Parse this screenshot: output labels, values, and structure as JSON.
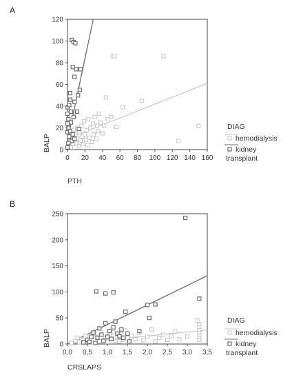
{
  "colors": {
    "hemodialysis": "#c4c4c4",
    "kidney_transplant": "#6b6b6b",
    "axis": "#444444"
  },
  "chart_data": [
    {
      "panel": "A",
      "type": "scatter",
      "xlabel": "PTH",
      "ylabel": "BALP",
      "xlim": [
        0,
        160
      ],
      "ylim": [
        0,
        120
      ],
      "xticks": [
        "0",
        "20",
        "40",
        "60",
        "80",
        "100",
        "120",
        "140",
        "160"
      ],
      "yticks": [
        "0",
        "20",
        "40",
        "60",
        "80",
        "100",
        "120"
      ],
      "legend": {
        "title": "DIAG",
        "entries": [
          "hemodialysis",
          "kidney transplant"
        ],
        "placement": "right"
      },
      "series": [
        {
          "name": "hemodialysis",
          "key": "hemodialysis",
          "points": [
            [
              2,
              3
            ],
            [
              3,
              8
            ],
            [
              4,
              2
            ],
            [
              5,
              12
            ],
            [
              6,
              5
            ],
            [
              7,
              18
            ],
            [
              8,
              9
            ],
            [
              9,
              14
            ],
            [
              10,
              6
            ],
            [
              11,
              20
            ],
            [
              12,
              10
            ],
            [
              13,
              3
            ],
            [
              14,
              16
            ],
            [
              15,
              8
            ],
            [
              16,
              22
            ],
            [
              17,
              12
            ],
            [
              18,
              5
            ],
            [
              19,
              26
            ],
            [
              20,
              14
            ],
            [
              21,
              9
            ],
            [
              22,
              18
            ],
            [
              23,
              4
            ],
            [
              24,
              28
            ],
            [
              25,
              11
            ],
            [
              26,
              20
            ],
            [
              28,
              7
            ],
            [
              29,
              24
            ],
            [
              30,
              14
            ],
            [
              31,
              30
            ],
            [
              33,
              10
            ],
            [
              34,
              22
            ],
            [
              35,
              17
            ],
            [
              36,
              33
            ],
            [
              38,
              25
            ],
            [
              40,
              15
            ],
            [
              42,
              22
            ],
            [
              44,
              48
            ],
            [
              46,
              28
            ],
            [
              50,
              30
            ],
            [
              52,
              86
            ],
            [
              54,
              86
            ],
            [
              56,
              21
            ],
            [
              63,
              39
            ],
            [
              85,
              45
            ],
            [
              110,
              86
            ],
            [
              127,
              8
            ],
            [
              150,
              22
            ]
          ]
        },
        {
          "name": "kidney transplant",
          "key": "kidney_transplant",
          "points": [
            [
              0,
              2
            ],
            [
              0,
              16
            ],
            [
              0,
              24
            ],
            [
              0,
              33
            ],
            [
              0,
              39
            ],
            [
              1,
              6
            ],
            [
              1,
              20
            ],
            [
              1,
              28
            ],
            [
              2,
              12
            ],
            [
              2,
              41
            ],
            [
              3,
              17
            ],
            [
              3,
              46
            ],
            [
              3,
              52
            ],
            [
              4,
              25
            ],
            [
              4,
              35
            ],
            [
              5,
              8
            ],
            [
              5,
              101
            ],
            [
              6,
              14
            ],
            [
              6,
              76
            ],
            [
              7,
              30
            ],
            [
              7,
              99
            ],
            [
              8,
              10
            ],
            [
              8,
              44
            ],
            [
              8,
              67
            ],
            [
              9,
              98
            ],
            [
              10,
              74
            ],
            [
              11,
              35
            ],
            [
              12,
              50
            ],
            [
              13,
              19
            ],
            [
              14,
              55
            ],
            [
              15,
              74
            ]
          ]
        }
      ],
      "fit_lines": [
        {
          "key": "hemodialysis",
          "x": [
            0,
            160
          ],
          "y": [
            10,
            61
          ]
        },
        {
          "key": "kidney_transplant",
          "x": [
            0,
            29.5
          ],
          "y": [
            8,
            120
          ]
        }
      ]
    },
    {
      "panel": "B",
      "type": "scatter",
      "xlabel": "CRSLAPS",
      "ylabel": "BALP",
      "xlim": [
        0,
        3.5
      ],
      "ylim": [
        0,
        250
      ],
      "xticks": [
        "0,0",
        "0,5",
        "1,0",
        "1,5",
        "2,0",
        "2,5",
        "3,0",
        "3,5"
      ],
      "yticks": [
        "0",
        "50",
        "100",
        "150",
        "200",
        "250"
      ],
      "legend": {
        "title": "DIAG",
        "entries": [
          "hemodialysis",
          "kidney transplant"
        ],
        "placement": "right"
      },
      "series": [
        {
          "name": "hemodialysis",
          "key": "hemodialysis",
          "points": [
            [
              0.1,
              2
            ],
            [
              0.2,
              6
            ],
            [
              0.25,
              12
            ],
            [
              0.3,
              3
            ],
            [
              0.35,
              9
            ],
            [
              0.4,
              4
            ],
            [
              0.45,
              15
            ],
            [
              0.5,
              6
            ],
            [
              0.55,
              10
            ],
            [
              0.6,
              3
            ],
            [
              0.65,
              20
            ],
            [
              0.7,
              8
            ],
            [
              0.75,
              14
            ],
            [
              0.8,
              5
            ],
            [
              0.85,
              18
            ],
            [
              0.9,
              7
            ],
            [
              0.95,
              12
            ],
            [
              1.0,
              4
            ],
            [
              1.05,
              16
            ],
            [
              1.1,
              9
            ],
            [
              1.15,
              22
            ],
            [
              1.2,
              6
            ],
            [
              1.25,
              13
            ],
            [
              1.3,
              5
            ],
            [
              1.35,
              19
            ],
            [
              1.4,
              8
            ],
            [
              1.45,
              26
            ],
            [
              1.5,
              11
            ],
            [
              1.55,
              4
            ],
            [
              1.6,
              16
            ],
            [
              1.7,
              9
            ],
            [
              1.8,
              21
            ],
            [
              1.9,
              7
            ],
            [
              2.0,
              14
            ],
            [
              2.1,
              28
            ],
            [
              2.2,
              5
            ],
            [
              2.3,
              12
            ],
            [
              2.4,
              18
            ],
            [
              2.5,
              8
            ],
            [
              2.6,
              15
            ],
            [
              2.7,
              24
            ],
            [
              2.8,
              9
            ],
            [
              3.0,
              14
            ],
            [
              3.3,
              8
            ],
            [
              3.3,
              13
            ],
            [
              3.3,
              18
            ],
            [
              3.3,
              23
            ],
            [
              3.3,
              28
            ],
            [
              3.3,
              33
            ],
            [
              3.3,
              38
            ],
            [
              3.25,
              45
            ]
          ]
        },
        {
          "name": "kidney transplant",
          "key": "kidney_transplant",
          "points": [
            [
              0.4,
              3
            ],
            [
              0.5,
              8
            ],
            [
              0.55,
              4
            ],
            [
              0.6,
              14
            ],
            [
              0.65,
              22
            ],
            [
              0.7,
              2
            ],
            [
              0.75,
              12
            ],
            [
              0.8,
              30
            ],
            [
              0.85,
              18
            ],
            [
              0.9,
              6
            ],
            [
              0.95,
              40
            ],
            [
              1.0,
              14
            ],
            [
              1.05,
              25
            ],
            [
              1.1,
              10
            ],
            [
              1.15,
              32
            ],
            [
              1.2,
              43
            ],
            [
              1.25,
              20
            ],
            [
              1.3,
              15
            ],
            [
              1.35,
              28
            ],
            [
              1.4,
              12
            ],
            [
              1.45,
              62
            ],
            [
              1.5,
              20
            ],
            [
              1.55,
              5
            ],
            [
              0.72,
              101
            ],
            [
              0.95,
              97
            ],
            [
              1.15,
              99
            ],
            [
              1.8,
              25
            ],
            [
              2.0,
              75
            ],
            [
              2.05,
              50
            ],
            [
              2.2,
              76
            ],
            [
              2.95,
              242
            ],
            [
              3.3,
              87
            ]
          ]
        }
      ],
      "fit_lines": [
        {
          "key": "hemodialysis",
          "x": [
            0,
            3.5
          ],
          "y": [
            0,
            27
          ]
        },
        {
          "key": "kidney_transplant",
          "x": [
            0,
            3.5
          ],
          "y": [
            0,
            131
          ]
        }
      ]
    }
  ]
}
